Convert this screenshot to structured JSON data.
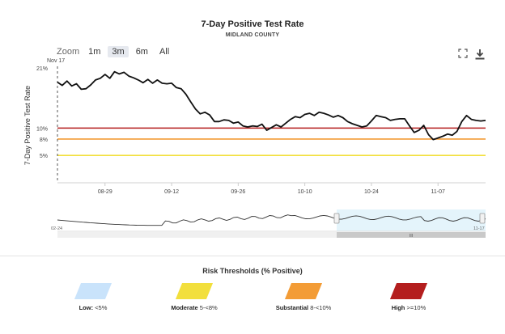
{
  "header": {
    "title": "7-Day Positive Test Rate",
    "subtitle": "MIDLAND COUNTY"
  },
  "toolbar": {
    "zoom_label": "Zoom",
    "zoom_options": [
      "1m",
      "3m",
      "6m",
      "All"
    ],
    "active_zoom": "3m",
    "fullscreen_icon": "fullscreen-icon",
    "download_icon": "download-icon"
  },
  "chart_data": {
    "type": "line",
    "ylabel": "7-Day Positive Test Rate",
    "y_ticks": [
      "5%",
      "8%",
      "10%",
      "21%"
    ],
    "x_ticks": [
      "08-29",
      "09-12",
      "09-26",
      "10-10",
      "10-24",
      "11-07"
    ],
    "ylim": [
      0,
      21
    ],
    "annotation": "Nov 17",
    "x": [
      "08-19",
      "08-20",
      "08-21",
      "08-22",
      "08-23",
      "08-24",
      "08-25",
      "08-26",
      "08-27",
      "08-28",
      "08-29",
      "08-30",
      "08-31",
      "09-01",
      "09-02",
      "09-03",
      "09-04",
      "09-05",
      "09-06",
      "09-07",
      "09-08",
      "09-09",
      "09-10",
      "09-11",
      "09-12",
      "09-13",
      "09-14",
      "09-15",
      "09-16",
      "09-17",
      "09-18",
      "09-19",
      "09-20",
      "09-21",
      "09-22",
      "09-23",
      "09-24",
      "09-25",
      "09-26",
      "09-27",
      "09-28",
      "09-29",
      "09-30",
      "10-01",
      "10-02",
      "10-03",
      "10-04",
      "10-05",
      "10-06",
      "10-07",
      "10-08",
      "10-09",
      "10-10",
      "10-11",
      "10-12",
      "10-13",
      "10-14",
      "10-15",
      "10-16",
      "10-17",
      "10-18",
      "10-19",
      "10-20",
      "10-21",
      "10-22",
      "10-23",
      "10-24",
      "10-25",
      "10-26",
      "10-27",
      "10-28",
      "10-29",
      "10-30",
      "10-31",
      "11-01",
      "11-02",
      "11-03",
      "11-04",
      "11-05",
      "11-06",
      "11-07",
      "11-08",
      "11-09",
      "11-10",
      "11-11",
      "11-12",
      "11-13",
      "11-14",
      "11-15",
      "11-16",
      "11-17"
    ],
    "series": [
      {
        "values": [
          18.4,
          17.8,
          18.6,
          17.7,
          18.1,
          17.1,
          17.2,
          17.9,
          18.8,
          19.1,
          19.8,
          19.1,
          20.3,
          19.9,
          20.2,
          19.5,
          19.2,
          18.8,
          18.3,
          18.9,
          18.2,
          18.8,
          18.2,
          18.1,
          18.2,
          17.4,
          17.2,
          16.2,
          14.8,
          13.5,
          12.6,
          12.9,
          12.4,
          11.2,
          11.2,
          11.5,
          11.4,
          10.9,
          11.1,
          10.4,
          10.2,
          10.4,
          10.3,
          10.7,
          9.6,
          10.1,
          10.6,
          10.2,
          10.9,
          11.6,
          12.1,
          11.9,
          12.5,
          12.7,
          12.3,
          12.9,
          12.7,
          12.4,
          12.0,
          12.3,
          11.9,
          11.2,
          10.8,
          10.5,
          10.2,
          10.4,
          11.3,
          12.3,
          12.1,
          11.9,
          11.4,
          11.6,
          11.7,
          11.7,
          10.4,
          9.2,
          9.6,
          10.5,
          8.8,
          7.9,
          8.2,
          8.5,
          8.9,
          8.7,
          9.4,
          11.2,
          12.3,
          11.6,
          11.4,
          11.3,
          11.4
        ]
      }
    ],
    "thresholds": [
      {
        "name": "High",
        "value": 10,
        "color": "#b41e1e"
      },
      {
        "name": "Substantial",
        "value": 8,
        "color": "#f39c36"
      },
      {
        "name": "Moderate",
        "value": 5,
        "color": "#f2df3c"
      }
    ],
    "navigator": {
      "start_label": "02-24",
      "end_label": "11-17",
      "handle_label": "III"
    }
  },
  "legend": {
    "title": "Risk Thresholds (% Positive)",
    "items": [
      {
        "name": "Low:",
        "range": "<5%",
        "color": "#c9e3fb"
      },
      {
        "name": "Moderate",
        "range": "5-<8%",
        "color": "#f2df3c"
      },
      {
        "name": "Substantial",
        "range": "8-<10%",
        "color": "#f39c36"
      },
      {
        "name": "High",
        "range": ">=10%",
        "color": "#b41e1e"
      }
    ]
  }
}
